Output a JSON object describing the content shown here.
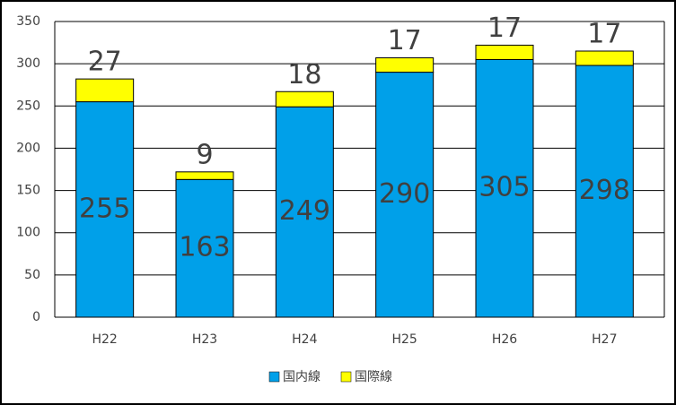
{
  "chart_data": {
    "type": "stacked-bar",
    "categories": [
      "H22",
      "H23",
      "H24",
      "H25",
      "H26",
      "H27"
    ],
    "series": [
      {
        "name": "国内線",
        "color": "#00a0e9",
        "values": [
          255,
          163,
          249,
          290,
          305,
          298
        ]
      },
      {
        "name": "国際線",
        "color": "#ffff00",
        "values": [
          27,
          9,
          18,
          17,
          17,
          17
        ]
      }
    ],
    "ylim": [
      0,
      350
    ],
    "yticks": [
      0,
      50,
      100,
      150,
      200,
      250,
      300,
      350
    ],
    "grid": true,
    "legend": "bottom"
  }
}
